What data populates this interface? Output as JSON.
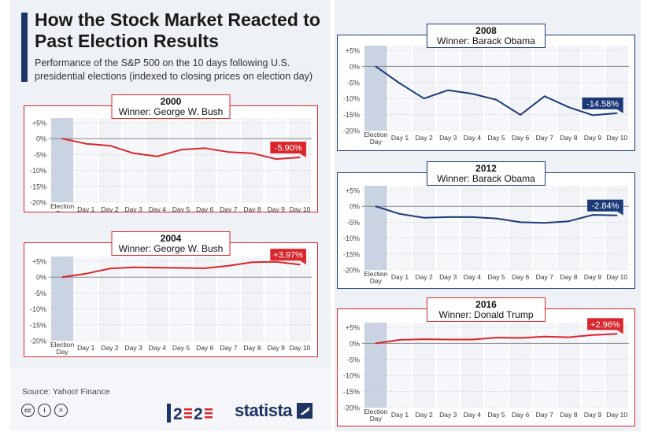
{
  "header": {
    "title": "How the Stock Market Reacted to Past Election Results",
    "subtitle": "Performance of the S&P 500 on the 10 days following U.S. presidential elections (indexed to closing prices on election day)"
  },
  "footer": {
    "source": "Source: Yahoo! Finance",
    "brand": "statista",
    "icons": [
      "creative-commons-icon",
      "attribution-icon",
      "no-derivatives-icon"
    ]
  },
  "colors": {
    "republican": "#d9262c",
    "democrat": "#1d3a78",
    "grid": "#c8ccd2",
    "zero_line": "#888888",
    "election_day_band": "#c9d3e2"
  },
  "chart_data": [
    {
      "type": "line",
      "title": "2000",
      "subtitle": "Winner: George W. Bush",
      "party_color": "#d9262c",
      "categories": [
        "Election Day",
        "Day 1",
        "Day 2",
        "Day 3",
        "Day 4",
        "Day 5",
        "Day 6",
        "Day 7",
        "Day 8",
        "Day 9",
        "Day 10"
      ],
      "values": [
        0,
        -1.6,
        -2.2,
        -4.6,
        -5.6,
        -3.5,
        -3.0,
        -4.2,
        -4.6,
        -6.4,
        -5.9
      ],
      "end_label": "-5.90%",
      "yticks": [
        "+5%",
        "0%",
        "-5%",
        "-10%",
        "-15%",
        "-20%"
      ],
      "ylim": [
        -20,
        5
      ]
    },
    {
      "type": "line",
      "title": "2004",
      "subtitle": "Winner: George W. Bush",
      "party_color": "#d9262c",
      "categories": [
        "Election Day",
        "Day 1",
        "Day 2",
        "Day 3",
        "Day 4",
        "Day 5",
        "Day 6",
        "Day 7",
        "Day 8",
        "Day 9",
        "Day 10"
      ],
      "values": [
        0,
        1.1,
        2.7,
        3.1,
        3.0,
        2.9,
        2.8,
        3.6,
        4.7,
        4.8,
        3.97
      ],
      "end_label": "+3.97%",
      "yticks": [
        "+5%",
        "0%",
        "-5%",
        "-10%",
        "-15%",
        "-20%"
      ],
      "ylim": [
        -20,
        5
      ]
    },
    {
      "type": "line",
      "title": "2008",
      "subtitle": "Winner: Barack Obama",
      "party_color": "#1d3a78",
      "categories": [
        "Election Day",
        "Day 1",
        "Day 2",
        "Day 3",
        "Day 4",
        "Day 5",
        "Day 6",
        "Day 7",
        "Day 8",
        "Day 9",
        "Day 10"
      ],
      "values": [
        0,
        -5.3,
        -10.0,
        -7.4,
        -8.5,
        -10.4,
        -15.1,
        -9.3,
        -12.7,
        -15.2,
        -14.58
      ],
      "end_label": "-14.58%",
      "yticks": [
        "+5%",
        "0%",
        "-5%",
        "-10%",
        "-15%",
        "-20%"
      ],
      "ylim": [
        -20,
        5
      ]
    },
    {
      "type": "line",
      "title": "2012",
      "subtitle": "Winner: Barack Obama",
      "party_color": "#1d3a78",
      "categories": [
        "Election Day",
        "Day 1",
        "Day 2",
        "Day 3",
        "Day 4",
        "Day 5",
        "Day 6",
        "Day 7",
        "Day 8",
        "Day 9",
        "Day 10"
      ],
      "values": [
        0,
        -2.4,
        -3.6,
        -3.4,
        -3.4,
        -3.8,
        -5.0,
        -5.2,
        -4.7,
        -2.7,
        -2.84
      ],
      "end_label": "-2.84%",
      "yticks": [
        "+5%",
        "0%",
        "-5%",
        "-10%",
        "-15%",
        "-20%"
      ],
      "ylim": [
        -20,
        5
      ]
    },
    {
      "type": "line",
      "title": "2016",
      "subtitle": "Winner: Donald Trump",
      "party_color": "#d9262c",
      "categories": [
        "Election Day",
        "Day 1",
        "Day 2",
        "Day 3",
        "Day 4",
        "Day 5",
        "Day 6",
        "Day 7",
        "Day 8",
        "Day 9",
        "Day 10"
      ],
      "values": [
        0,
        1.1,
        1.3,
        1.2,
        1.2,
        1.8,
        1.7,
        2.1,
        1.9,
        2.6,
        2.96
      ],
      "end_label": "+2.96%",
      "yticks": [
        "+5%",
        "0%",
        "-5%",
        "-10%",
        "-15%",
        "-20%"
      ],
      "ylim": [
        -20,
        5
      ]
    }
  ]
}
